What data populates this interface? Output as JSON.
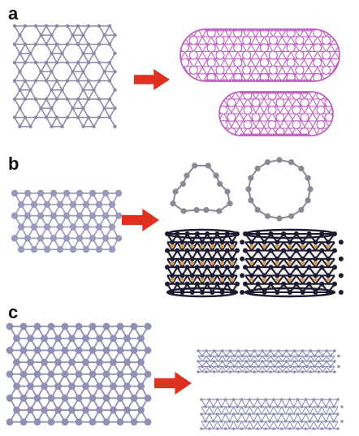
{
  "figure": {
    "panels": [
      {
        "label": "a"
      },
      {
        "label": "b"
      },
      {
        "label": "c"
      }
    ]
  },
  "colors": {
    "panel_a_sheet": "#8a8aa8",
    "panel_a_capsule": "#c25ec4",
    "panel_b_sheet": "#9a9abd",
    "panel_b_ring": "#8a8a94",
    "panel_b_tube": "#1a1a30",
    "panel_b_tube_inner": "#d8a060",
    "panel_c_sheet": "#9090b4",
    "arrow": "#e03020"
  }
}
